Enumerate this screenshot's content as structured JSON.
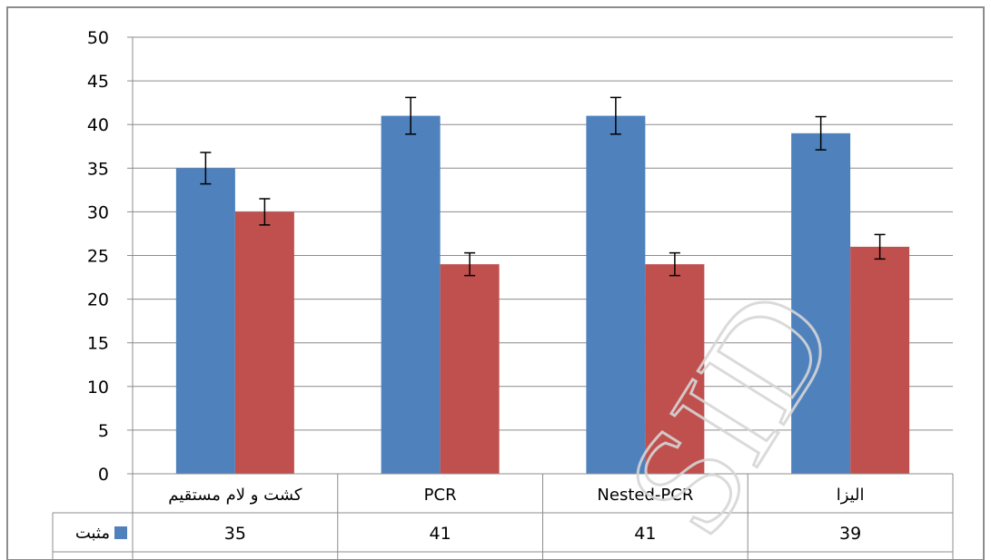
{
  "chart_data": {
    "type": "bar",
    "categories": [
      "کشت و لام مستقیم",
      "PCR",
      "Nested-PCR",
      "الیزا"
    ],
    "series": [
      {
        "name": "مثبت",
        "color": "#4f81bd",
        "values": [
          35,
          41,
          41,
          39
        ],
        "errors": [
          1.8,
          2.1,
          2.1,
          1.9
        ]
      },
      {
        "color": "#c0504d",
        "values": [
          30,
          24,
          24,
          26
        ],
        "errors": [
          1.5,
          1.3,
          1.3,
          1.4
        ]
      }
    ],
    "ylim": [
      0,
      50
    ],
    "yticks": [
      0,
      5,
      10,
      15,
      20,
      25,
      30,
      35,
      40,
      45,
      50
    ],
    "grid": true,
    "data_table": {
      "legend_label": "مثبت",
      "legend_color": "#4f81bd",
      "values": [
        "35",
        "41",
        "41",
        "39"
      ]
    },
    "watermark": "SID"
  }
}
